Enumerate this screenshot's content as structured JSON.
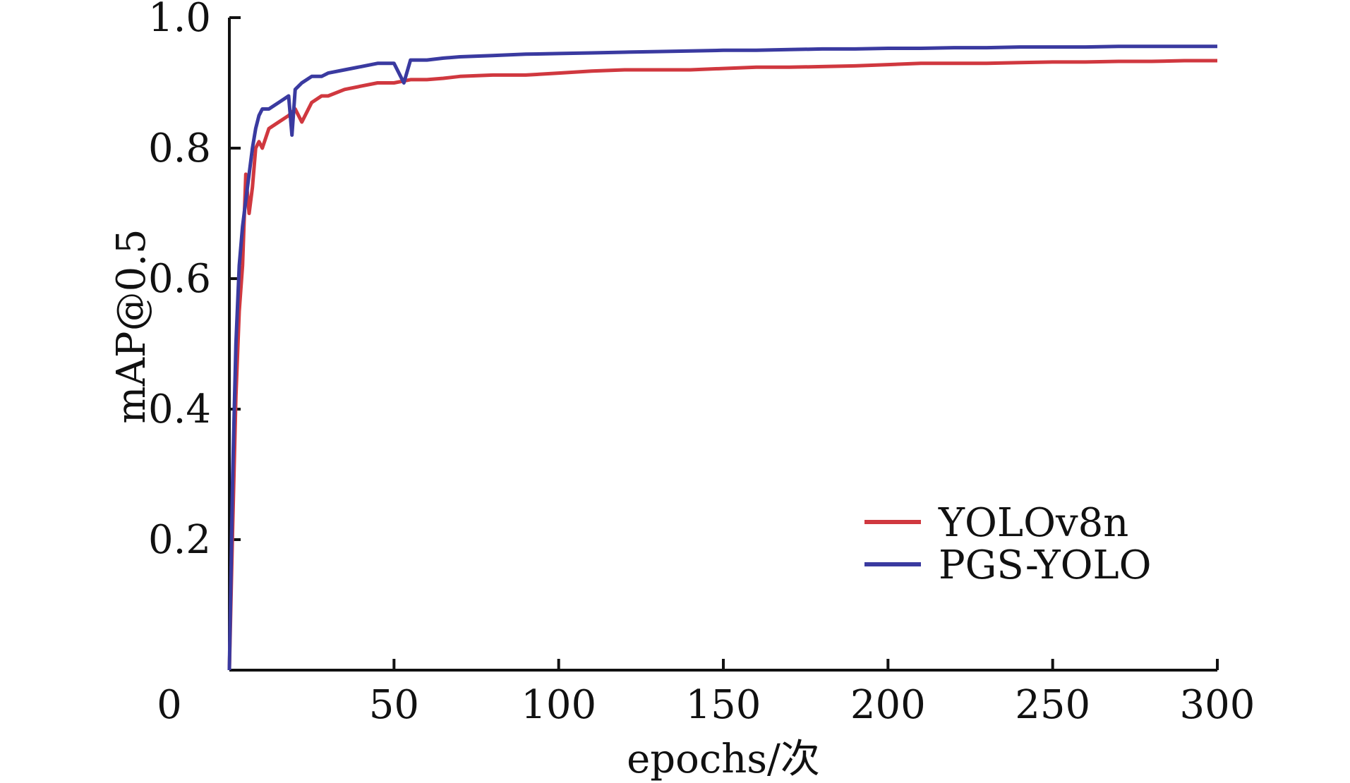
{
  "chart_data": {
    "type": "line",
    "xlabel": "epochs/次",
    "ylabel": "mAP@0.5",
    "xlim": [
      0,
      300
    ],
    "ylim": [
      0,
      1.0
    ],
    "x_ticks": [
      0,
      50,
      100,
      150,
      200,
      250,
      300
    ],
    "y_ticks": [
      0.2,
      0.4,
      0.6,
      0.8,
      1.0
    ],
    "x_tick_labels": [
      "0",
      "50",
      "100",
      "150",
      "200",
      "250",
      "300"
    ],
    "y_tick_labels": [
      "0.2",
      "0.4",
      "0.6",
      "0.8",
      "1.0"
    ],
    "grid": false,
    "legend_position": "bottom-right",
    "series": [
      {
        "name": "YOLOv8n",
        "color": "#d0383f",
        "x": [
          0,
          1,
          2,
          3,
          4,
          5,
          6,
          7,
          8,
          9,
          10,
          12,
          15,
          18,
          20,
          22,
          25,
          28,
          30,
          35,
          40,
          45,
          50,
          55,
          60,
          65,
          70,
          80,
          90,
          100,
          110,
          120,
          130,
          140,
          150,
          160,
          170,
          180,
          190,
          200,
          210,
          220,
          230,
          240,
          250,
          260,
          270,
          280,
          290,
          300
        ],
        "y": [
          0.0,
          0.22,
          0.42,
          0.55,
          0.62,
          0.76,
          0.7,
          0.74,
          0.8,
          0.81,
          0.8,
          0.83,
          0.84,
          0.85,
          0.86,
          0.84,
          0.87,
          0.88,
          0.88,
          0.89,
          0.895,
          0.9,
          0.9,
          0.905,
          0.905,
          0.907,
          0.91,
          0.912,
          0.912,
          0.915,
          0.918,
          0.92,
          0.92,
          0.92,
          0.922,
          0.924,
          0.924,
          0.925,
          0.926,
          0.928,
          0.93,
          0.93,
          0.93,
          0.931,
          0.932,
          0.932,
          0.933,
          0.933,
          0.934,
          0.934
        ]
      },
      {
        "name": "PGS-YOLO",
        "color": "#3a3aa0",
        "x": [
          0,
          1,
          2,
          3,
          4,
          5,
          6,
          7,
          8,
          9,
          10,
          12,
          15,
          18,
          19,
          20,
          22,
          25,
          28,
          30,
          35,
          40,
          45,
          50,
          53,
          55,
          60,
          65,
          70,
          80,
          90,
          100,
          110,
          120,
          130,
          140,
          150,
          160,
          170,
          180,
          190,
          200,
          210,
          220,
          230,
          240,
          250,
          260,
          270,
          280,
          290,
          300
        ],
        "y": [
          0.0,
          0.3,
          0.5,
          0.62,
          0.68,
          0.72,
          0.76,
          0.8,
          0.83,
          0.85,
          0.86,
          0.86,
          0.87,
          0.88,
          0.82,
          0.89,
          0.9,
          0.91,
          0.91,
          0.915,
          0.92,
          0.925,
          0.93,
          0.93,
          0.9,
          0.935,
          0.935,
          0.938,
          0.94,
          0.942,
          0.944,
          0.945,
          0.946,
          0.947,
          0.948,
          0.949,
          0.95,
          0.95,
          0.951,
          0.952,
          0.952,
          0.953,
          0.953,
          0.954,
          0.954,
          0.955,
          0.955,
          0.955,
          0.956,
          0.956,
          0.956,
          0.956
        ]
      }
    ]
  }
}
